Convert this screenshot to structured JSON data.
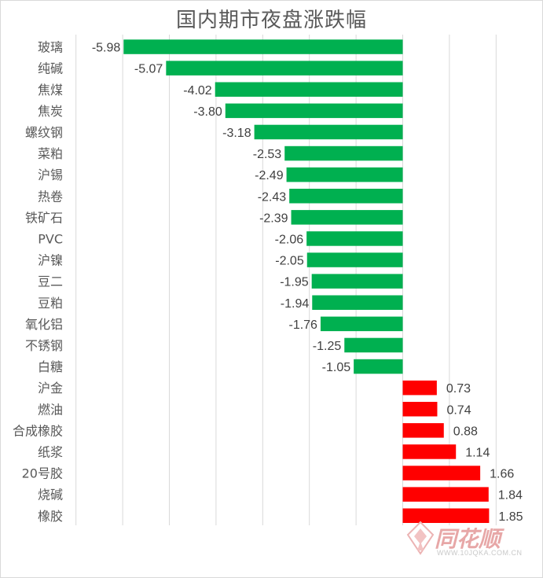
{
  "chart_data": {
    "type": "bar",
    "orientation": "horizontal",
    "title": "国内期市夜盘涨跌幅",
    "categories": [
      "玻璃",
      "纯碱",
      "焦煤",
      "焦炭",
      "螺纹钢",
      "菜粕",
      "沪锡",
      "热卷",
      "铁矿石",
      "PVC",
      "沪镍",
      "豆二",
      "豆粕",
      "氧化铝",
      "不锈钢",
      "白糖",
      "沪金",
      "燃油",
      "合成橡胶",
      "纸浆",
      "20号胶",
      "烧碱",
      "橡胶"
    ],
    "values": [
      -5.98,
      -5.07,
      -4.02,
      -3.8,
      -3.18,
      -2.53,
      -2.49,
      -2.43,
      -2.39,
      -2.06,
      -2.05,
      -1.95,
      -1.94,
      -1.76,
      -1.25,
      -1.05,
      0.73,
      0.74,
      0.88,
      1.14,
      1.66,
      1.84,
      1.85
    ],
    "xlim": [
      -7,
      3
    ],
    "grid": true,
    "negative_color": "#00b050",
    "positive_color": "#ff0000"
  },
  "watermark": {
    "brand": "同花顺",
    "url": "WWW.10JQKA.COM.CN"
  }
}
